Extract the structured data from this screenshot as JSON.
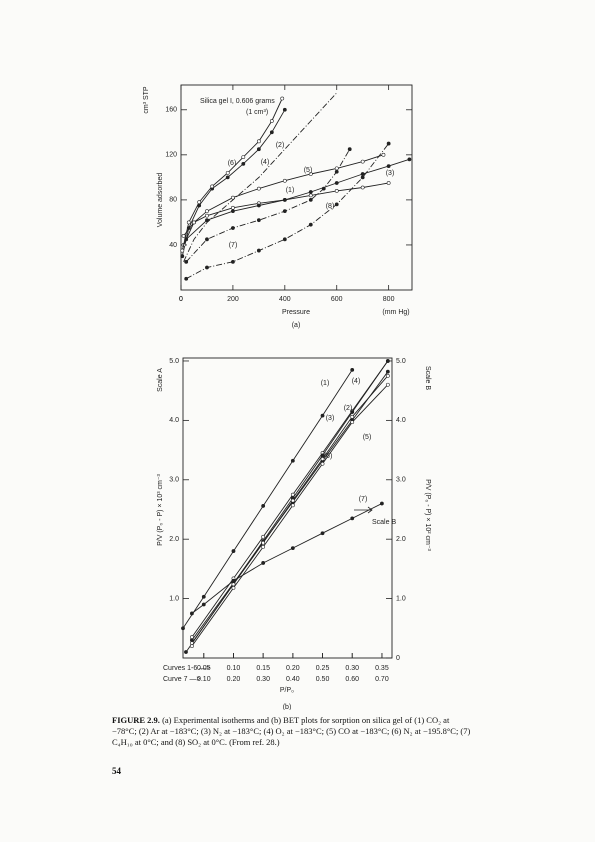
{
  "chart_data": [
    {
      "type": "line",
      "panel_label": "(a)",
      "xlabel": "Pressure",
      "xunit": "(mm Hg)",
      "ylabel": "Volume adsorbed",
      "yunit": "cm³ STP",
      "annotations": [
        "Silica gel I, 0.606 grams",
        "(1 cm³)"
      ],
      "xlim": [
        0,
        890
      ],
      "ylim": [
        0,
        182
      ],
      "xticks": [
        0,
        200,
        400,
        600,
        800
      ],
      "yticks": [
        40,
        80,
        120,
        160
      ],
      "series": [
        {
          "name": "(1)",
          "marker": "open",
          "style": "solid",
          "x": [
            10,
            50,
            100,
            200,
            300,
            400,
            500,
            600,
            700,
            800
          ],
          "values": [
            48,
            60,
            66,
            73,
            77,
            80,
            84,
            88,
            91,
            95
          ]
        },
        {
          "name": "(2)",
          "marker": "none",
          "style": "dashdot",
          "x": [
            10,
            50,
            100,
            200,
            300,
            400,
            500,
            600
          ],
          "values": [
            25,
            45,
            60,
            80,
            100,
            125,
            150,
            175
          ]
        },
        {
          "name": "(3)",
          "marker": "filled",
          "style": "solid",
          "x": [
            20,
            100,
            200,
            300,
            400,
            500,
            600,
            700,
            800,
            880
          ],
          "values": [
            45,
            62,
            70,
            75,
            80,
            87,
            95,
            103,
            110,
            116
          ]
        },
        {
          "name": "(4)",
          "marker": "filled",
          "style": "solid",
          "x": [
            5,
            30,
            70,
            120,
            180,
            240,
            300,
            350,
            400
          ],
          "values": [
            30,
            55,
            75,
            90,
            100,
            112,
            125,
            140,
            160
          ]
        },
        {
          "name": "(5)",
          "marker": "open",
          "style": "solid",
          "x": [
            10,
            50,
            100,
            200,
            300,
            400,
            500,
            600,
            700,
            780
          ],
          "values": [
            40,
            60,
            70,
            82,
            90,
            97,
            103,
            108,
            114,
            120
          ]
        },
        {
          "name": "(6)",
          "marker": "open",
          "style": "solid",
          "x": [
            5,
            30,
            70,
            120,
            180,
            240,
            300,
            350,
            390
          ],
          "values": [
            35,
            60,
            78,
            92,
            104,
            118,
            132,
            150,
            170
          ]
        },
        {
          "name": "(7)",
          "marker": "filled",
          "style": "dashdot",
          "x": [
            20,
            100,
            200,
            300,
            400,
            500,
            600,
            700,
            800
          ],
          "values": [
            10,
            20,
            25,
            35,
            45,
            58,
            76,
            100,
            130
          ]
        },
        {
          "name": "(8)",
          "marker": "filled",
          "style": "dashdot",
          "x": [
            20,
            100,
            200,
            300,
            400,
            500,
            550,
            600,
            650
          ],
          "values": [
            25,
            45,
            55,
            62,
            70,
            80,
            90,
            105,
            125
          ]
        }
      ]
    },
    {
      "type": "line",
      "panel_label": "(b)",
      "xlabel": "P/P₀",
      "x_row_label": "Curves 1-6 —>",
      "x2_row_label": "Curve 7 —>",
      "yaxis_name": "Scale A",
      "y2axis_name": "Scale B",
      "ylabel": "P/V (P₀ - P) × 10³ cm⁻³",
      "y2label": "P/V (P₀ - P) × 10² cm⁻³",
      "annotations": [
        "Scale B"
      ],
      "xlim": [
        0.015,
        0.367
      ],
      "x2lim": [
        0.03,
        0.734
      ],
      "ylim": [
        0,
        5.05
      ],
      "y2lim": [
        0,
        5.05
      ],
      "xticks": [
        {
          "value": 0.05,
          "label": "0.05"
        },
        {
          "value": 0.1,
          "label": "0.10"
        },
        {
          "value": 0.15,
          "label": "0.15"
        },
        {
          "value": 0.2,
          "label": "0.20"
        },
        {
          "value": 0.25,
          "label": "0.25"
        },
        {
          "value": 0.3,
          "label": "0.30"
        },
        {
          "value": 0.35,
          "label": "0.35"
        }
      ],
      "x2ticks": [
        {
          "value": 0.1,
          "label": "0.10"
        },
        {
          "value": 0.2,
          "label": "0.20"
        },
        {
          "value": 0.3,
          "label": "0.30"
        },
        {
          "value": 0.4,
          "label": "0.40"
        },
        {
          "value": 0.5,
          "label": "0.50"
        },
        {
          "value": 0.6,
          "label": "0.60"
        },
        {
          "value": 0.7,
          "label": "0.70"
        }
      ],
      "yticks": [
        {
          "value": 1,
          "label": "1.0"
        },
        {
          "value": 2,
          "label": "2.0"
        },
        {
          "value": 3,
          "label": "3.0"
        },
        {
          "value": 4,
          "label": "4.0"
        },
        {
          "value": 5,
          "label": "5.0"
        }
      ],
      "y2ticks": [
        0,
        {
          "value": 1,
          "label": "1.0"
        },
        {
          "value": 2,
          "label": "2.0"
        },
        {
          "value": 3,
          "label": "3.0"
        },
        {
          "value": 4,
          "label": "4.0"
        },
        {
          "value": 5,
          "label": "5.0"
        }
      ],
      "series": [
        {
          "name": "(1)",
          "marker": "filled",
          "style": "solid",
          "x": [
            0.015,
            0.05,
            0.1,
            0.15,
            0.2,
            0.25,
            0.3
          ],
          "values": [
            0.5,
            1.03,
            1.8,
            2.56,
            3.32,
            4.08,
            4.85
          ]
        },
        {
          "name": "(2)",
          "marker": "open",
          "style": "solid",
          "x": [
            0.03,
            0.1,
            0.15,
            0.2,
            0.25,
            0.3,
            0.36
          ],
          "values": [
            0.35,
            1.34,
            2.04,
            2.75,
            3.45,
            4.16,
            5.0
          ]
        },
        {
          "name": "(3)",
          "marker": "filled",
          "style": "solid",
          "x": [
            0.03,
            0.1,
            0.15,
            0.2,
            0.25,
            0.3,
            0.36
          ],
          "values": [
            0.3,
            1.26,
            1.95,
            2.63,
            3.32,
            4.0,
            4.82
          ]
        },
        {
          "name": "(4)",
          "marker": "filled",
          "style": "solid",
          "x": [
            0.02,
            0.1,
            0.15,
            0.2,
            0.25,
            0.3,
            0.36
          ],
          "values": [
            0.1,
            1.25,
            1.97,
            2.69,
            3.41,
            4.14,
            5.0
          ]
        },
        {
          "name": "(5)",
          "marker": "open",
          "style": "solid",
          "x": [
            0.03,
            0.1,
            0.15,
            0.2,
            0.25,
            0.3,
            0.36
          ],
          "values": [
            0.25,
            1.24,
            1.94,
            2.65,
            3.35,
            4.06,
            4.75
          ]
        },
        {
          "name": "(6)",
          "marker": "open",
          "style": "solid",
          "x": [
            0.03,
            0.1,
            0.15,
            0.2,
            0.25,
            0.3,
            0.36
          ],
          "values": [
            0.2,
            1.18,
            1.87,
            2.57,
            3.27,
            3.97,
            4.6
          ]
        },
        {
          "name": "(7)",
          "marker": "filled",
          "style": "solid",
          "axis": "x2",
          "x": [
            0.06,
            0.1,
            0.2,
            0.3,
            0.4,
            0.5,
            0.6,
            0.7
          ],
          "values": [
            0.75,
            0.9,
            1.3,
            1.6,
            1.85,
            2.1,
            2.35,
            2.6
          ]
        }
      ]
    }
  ],
  "caption": {
    "label": "FIGURE 2.9.",
    "text": "(a) Experimental isotherms and (b) BET plots for sorption on silica gel of (1) CO₂ at −78°C; (2) Ar at −183°C; (3) N₂ at −183°C; (4) O₂ at −183°C; (5) CO at −183°C; (6) N₂ at −195.8°C; (7) C₄H₁₀ at 0°C; and (8) SO₂ at 0°C. (From ref. 28.)"
  },
  "page_number": "54"
}
